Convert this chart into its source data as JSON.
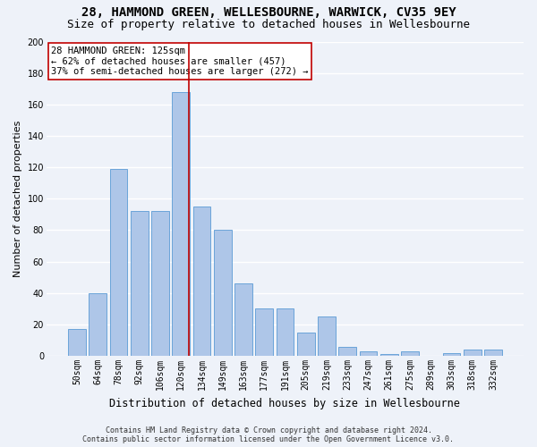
{
  "title": "28, HAMMOND GREEN, WELLESBOURNE, WARWICK, CV35 9EY",
  "subtitle": "Size of property relative to detached houses in Wellesbourne",
  "xlabel_bottom": "Distribution of detached houses by size in Wellesbourne",
  "ylabel": "Number of detached properties",
  "categories": [
    "50sqm",
    "64sqm",
    "78sqm",
    "92sqm",
    "106sqm",
    "120sqm",
    "134sqm",
    "149sqm",
    "163sqm",
    "177sqm",
    "191sqm",
    "205sqm",
    "219sqm",
    "233sqm",
    "247sqm",
    "261sqm",
    "275sqm",
    "289sqm",
    "303sqm",
    "318sqm",
    "332sqm"
  ],
  "values": [
    17,
    40,
    119,
    92,
    92,
    168,
    95,
    80,
    46,
    30,
    30,
    15,
    25,
    6,
    3,
    1,
    3,
    0,
    2,
    4,
    4
  ],
  "bar_color": "#aec6e8",
  "bar_edge_color": "#5b9bd5",
  "vline_x": 5.36,
  "vline_color": "#c00000",
  "annotation_text": "28 HAMMOND GREEN: 125sqm\n← 62% of detached houses are smaller (457)\n37% of semi-detached houses are larger (272) →",
  "annotation_box_color": "#ffffff",
  "annotation_box_edge": "#c00000",
  "footer": "Contains HM Land Registry data © Crown copyright and database right 2024.\nContains public sector information licensed under the Open Government Licence v3.0.",
  "ylim": [
    0,
    200
  ],
  "yticks": [
    0,
    20,
    40,
    60,
    80,
    100,
    120,
    140,
    160,
    180,
    200
  ],
  "background_color": "#eef2f9",
  "grid_color": "#ffffff",
  "title_fontsize": 10,
  "subtitle_fontsize": 9,
  "tick_fontsize": 7,
  "ylabel_fontsize": 8,
  "xlabel_bottom_fontsize": 8.5,
  "annotation_fontsize": 7.5,
  "footer_fontsize": 6
}
